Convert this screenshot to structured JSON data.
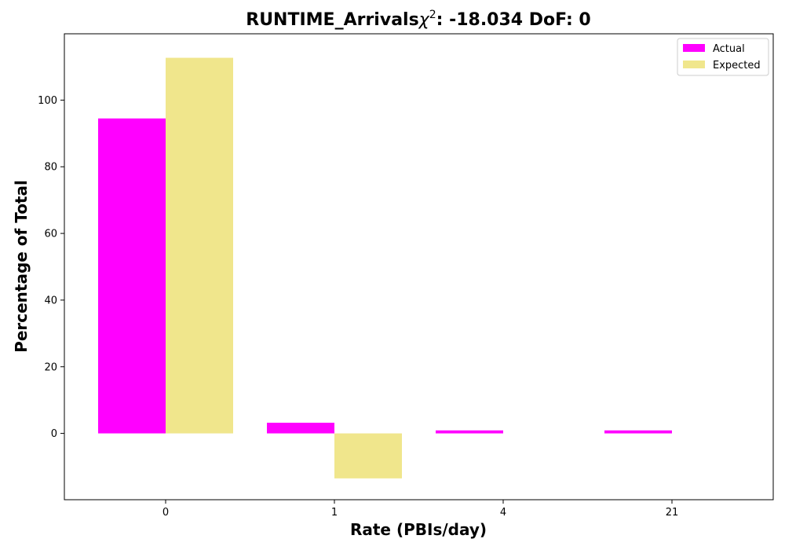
{
  "chart_data": {
    "type": "bar",
    "title_main": "RUNTIME_Arrivals",
    "title_chi": "χ",
    "title_sup": "2",
    "title_rest": ": -18.034 DoF: 0",
    "xlabel": "Rate (PBIs/day)",
    "ylabel": "Percentage of Total",
    "categories": [
      "0",
      "1",
      "4",
      "21"
    ],
    "series": [
      {
        "name": "Actual",
        "color": "#ff00ff",
        "values": [
          94.5,
          3.2,
          0.9,
          0.9
        ]
      },
      {
        "name": "Expected",
        "color": "#f0e68c",
        "values": [
          112.7,
          -13.5,
          0,
          0
        ]
      }
    ],
    "ylim": [
      -19.9,
      119.9
    ],
    "yticks": [
      0,
      20,
      40,
      60,
      80,
      100
    ],
    "grid": false,
    "legend_position": "top-right"
  }
}
